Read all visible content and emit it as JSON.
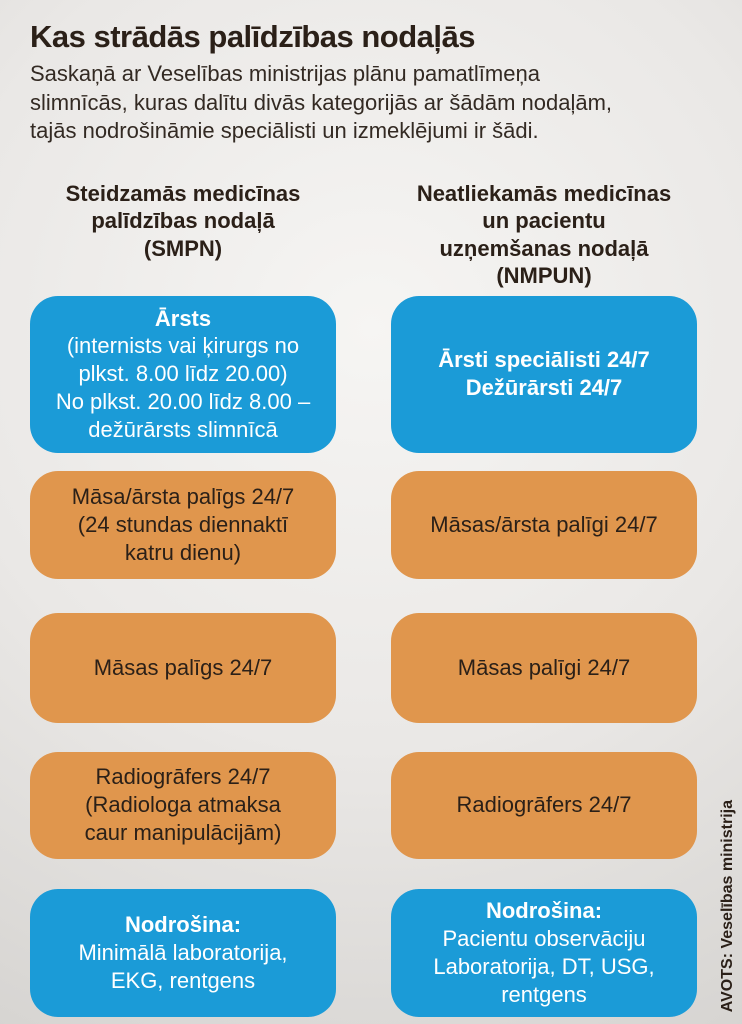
{
  "page": {
    "title": "Kas strādās palīdzības nodaļās",
    "subtitle": "Saskaņā ar Veselības ministrijas plānu pamatlīmeņa\nslimnīcās, kuras dalītu divās kategorijās ar šādām nodaļām,\ntajās nodrošināmie speciālisti un izmeklējumi ir šādi.",
    "source": "AVOTS: Veselības ministrija"
  },
  "columns": [
    {
      "header": "Steidzamās medicīnas\npalīdzības nodaļā\n(SMPN)"
    },
    {
      "header": "Neatliekamās medicīnas\nun pacientu\nuzņemšanas nodaļā\n(NMPUN)"
    }
  ],
  "rows": [
    {
      "color": "blue",
      "left": {
        "title": "Ārsts",
        "body": "(internists vai ķirurgs no\nplkst. 8.00 līdz 20.00)\nNo plkst. 20.00 līdz 8.00 –\ndežūrārsts slimnīcā"
      },
      "right": {
        "title": "Ārsti speciālisti 24/7\nDežūrārsti 24/7",
        "body": ""
      }
    },
    {
      "color": "orange",
      "left": {
        "title": "",
        "body": "Māsa/ārsta palīgs 24/7\n(24 stundas diennaktī\nkatru dienu)"
      },
      "right": {
        "title": "",
        "body": "Māsas/ārsta palīgi 24/7"
      }
    },
    {
      "color": "orange",
      "left": {
        "title": "",
        "body": "Māsas palīgs 24/7"
      },
      "right": {
        "title": "",
        "body": "Māsas palīgi 24/7"
      }
    },
    {
      "color": "orange",
      "left": {
        "title": "",
        "body": "Radiogrāfers 24/7\n(Radiologa atmaksa\ncaur manipulācijām)"
      },
      "right": {
        "title": "",
        "body": "Radiogrāfers 24/7"
      }
    },
    {
      "color": "blue",
      "left": {
        "title": "Nodrošina:",
        "body": "Minimālā laboratorija,\nEKG, rentgens"
      },
      "right": {
        "title": "Nodrošina:",
        "body": "Pacientu observāciju\nLaboratorija, DT, USG,\nrentgens"
      }
    }
  ],
  "colors": {
    "blue": "#1b9bd7",
    "orange": "#e0964d",
    "dark": "#2b2018"
  }
}
